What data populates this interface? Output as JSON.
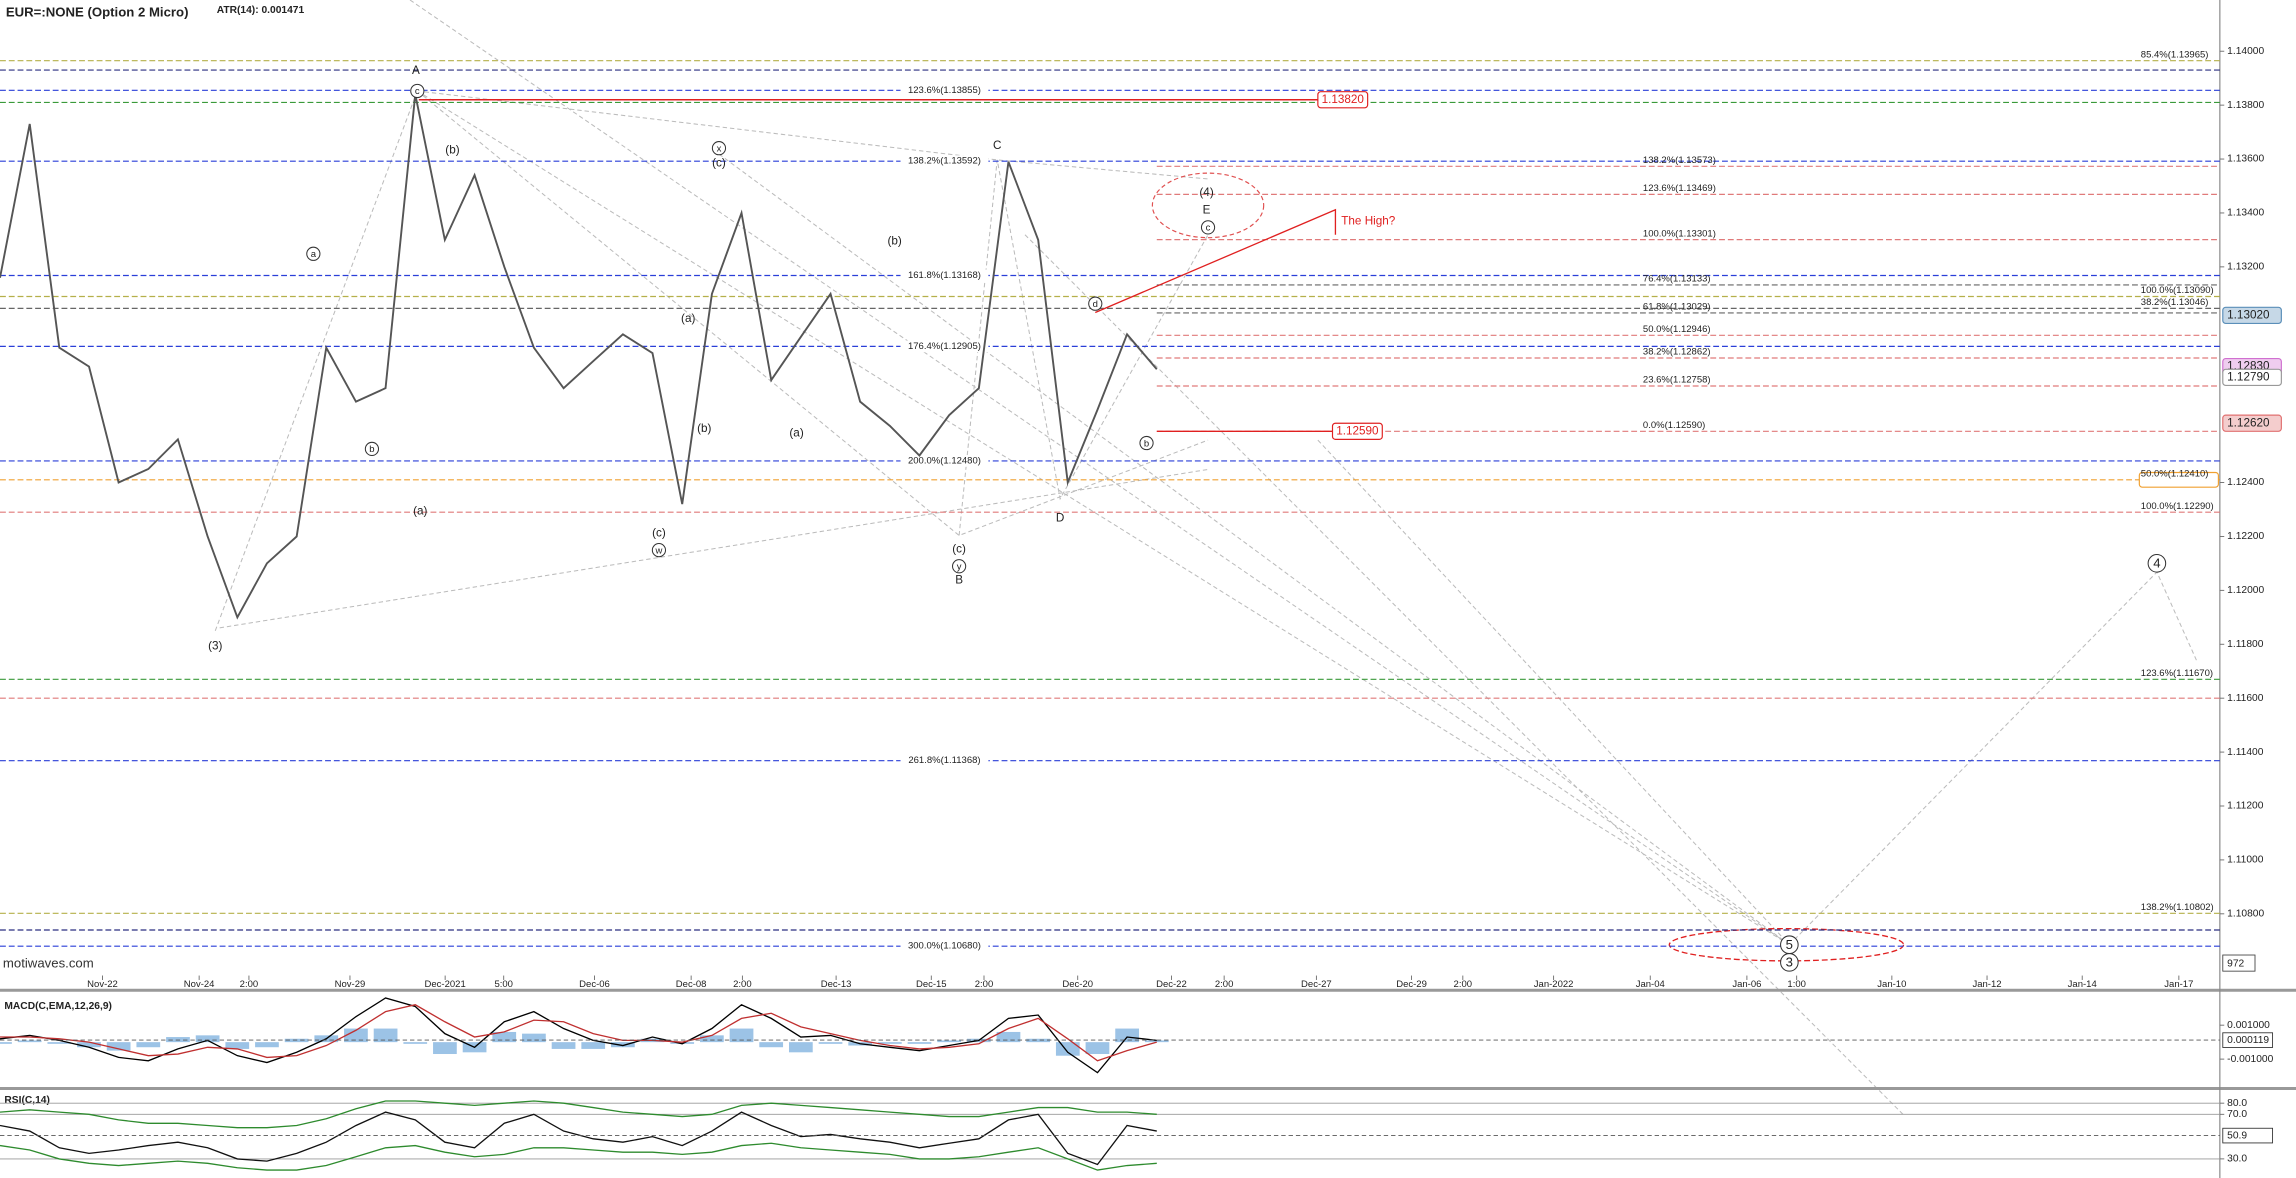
{
  "chart_data": [
    {
      "type": "line",
      "title": "EUR=:NONE (Option 2 Micro)",
      "subtitle": "ATR(14): 0.001471",
      "watermark": "motiwaves.com",
      "volume_label": "972",
      "ylim": [
        1.10571,
        1.1419
      ],
      "yticks": [
        {
          "value": 1.14,
          "label": "1.14000"
        },
        {
          "value": 1.138,
          "label": "1.13800"
        },
        {
          "value": 1.136,
          "label": "1.13600"
        },
        {
          "value": 1.134,
          "label": "1.13400"
        },
        {
          "value": 1.132,
          "label": "1.13200"
        },
        {
          "value": 1.124,
          "label": "1.12400"
        },
        {
          "value": 1.122,
          "label": "1.12200"
        },
        {
          "value": 1.12,
          "label": "1.12000"
        },
        {
          "value": 1.118,
          "label": "1.11800"
        },
        {
          "value": 1.116,
          "label": "1.11600"
        },
        {
          "value": 1.114,
          "label": "1.11400"
        },
        {
          "value": 1.112,
          "label": "1.11200"
        },
        {
          "value": 1.11,
          "label": "1.11000"
        },
        {
          "value": 1.108,
          "label": "1.10800"
        }
      ],
      "xticks": [
        "Nov-22",
        "Nov-24",
        "2:00",
        "Nov-29",
        "Dec-2021",
        "5:00",
        "Dec-06",
        "Dec-08",
        "2:00",
        "Dec-13",
        "Dec-15",
        "2:00",
        "Dec-20",
        "Dec-22",
        "2:00",
        "Dec-27",
        "Dec-29",
        "2:00",
        "Jan-2022",
        "Jan-04",
        "Jan-06",
        "1:00",
        "Jan-10",
        "Jan-12",
        "Jan-14",
        "Jan-17"
      ],
      "color": "#555555",
      "values": [
        1.1316,
        1.1373,
        1.129,
        1.1283,
        1.124,
        1.1245,
        1.1256,
        1.122,
        1.119,
        1.121,
        1.122,
        1.129,
        1.127,
        1.1275,
        1.1384,
        1.133,
        1.1354,
        1.132,
        1.129,
        1.1275,
        1.1285,
        1.1295,
        1.1288,
        1.1232,
        1.131,
        1.134,
        1.1278,
        1.1294,
        1.131,
        1.127,
        1.1261,
        1.125,
        1.1265,
        1.1275,
        1.1359,
        1.133,
        1.124,
        1.1267,
        1.1295,
        1.1282
      ],
      "levels": [
        {
          "label": "85.4%(1.13965)",
          "value": 1.13965,
          "color": "#b5b04a"
        },
        {
          "value": 1.1393,
          "color": "#2a2f80"
        },
        {
          "label": "123.6%(1.13855)",
          "value": 1.13855,
          "color": "#2a3fd8"
        },
        {
          "value": 1.1381,
          "color": "#3a9a3a"
        },
        {
          "label": "138.2%(1.13592)",
          "value": 1.13592,
          "color": "#2a3fd8"
        },
        {
          "label": "138.2%(1.13573)",
          "value": 1.13573,
          "color": "#e07a7a"
        },
        {
          "label": "123.6%(1.13469)",
          "value": 1.13469,
          "color": "#e07a7a"
        },
        {
          "label": "100.0%(1.13301)",
          "value": 1.13301,
          "color": "#e07a7a"
        },
        {
          "label": "161.8%(1.13168)",
          "value": 1.13168,
          "color": "#2a3fd8"
        },
        {
          "label": "76.4%(1.13133)",
          "value": 1.13133,
          "color": "#666666"
        },
        {
          "label": "100.0%(1.13090)",
          "value": 1.1309,
          "color": "#b5b04a"
        },
        {
          "label": "38.2%(1.13046)",
          "value": 1.13046,
          "color": "#666666"
        },
        {
          "label": "61.8%(1.13029)",
          "value": 1.13029,
          "color": "#666666"
        },
        {
          "label": "50.0%(1.12946)",
          "value": 1.12946,
          "color": "#e07a7a"
        },
        {
          "label": "176.4%(1.12905)",
          "value": 1.12905,
          "color": "#2a3fd8"
        },
        {
          "label": "38.2%(1.12862)",
          "value": 1.12862,
          "color": "#e07a7a"
        },
        {
          "label": "23.6%(1.12758)",
          "value": 1.12758,
          "color": "#e07a7a"
        },
        {
          "label": "0.0%(1.12590)",
          "value": 1.1259,
          "color": "#e07a7a"
        },
        {
          "label": "200.0%(1.12480)",
          "value": 1.1248,
          "color": "#2a3fd8"
        },
        {
          "label": "50.0%(1.12410)",
          "value": 1.1241,
          "color": "#f0a030"
        },
        {
          "label": "100.0%(1.12290)",
          "value": 1.1229,
          "color": "#e07a7a"
        },
        {
          "label": "123.6%(1.11670)",
          "value": 1.1167,
          "color": "#3a9a3a"
        },
        {
          "value": 1.116,
          "color": "#e07a7a"
        },
        {
          "label": "261.8%(1.11368)",
          "value": 1.11368,
          "color": "#2a3fd8"
        },
        {
          "label": "138.2%(1.10802)",
          "value": 1.10802,
          "color": "#b5b04a"
        },
        {
          "value": 1.1074,
          "color": "#2a2f80"
        },
        {
          "label": "300.0%(1.10680)",
          "value": 1.1068,
          "color": "#2a3fd8"
        }
      ],
      "price_tags": [
        {
          "label": "1.13020",
          "value": 1.1302,
          "color": "#5b8fb9"
        },
        {
          "label": "1.12830",
          "value": 1.1283,
          "color": "#d070d0"
        },
        {
          "label": "1.12790",
          "value": 1.1279,
          "color": "#999999"
        },
        {
          "label": "1.12620",
          "value": 1.1262,
          "color": "#e07070"
        }
      ],
      "red_tags": [
        {
          "label": "1.13820",
          "value": 1.1382
        },
        {
          "label": "1.12590",
          "value": 1.1259
        }
      ],
      "callout": "The High?",
      "annotations": [
        {
          "text": "A"
        },
        {
          "text": "c",
          "circled": true
        },
        {
          "text": "(b)"
        },
        {
          "text": "x",
          "circled": true
        },
        {
          "text": "(c)"
        },
        {
          "text": "C"
        },
        {
          "text": "(4)"
        },
        {
          "text": "E"
        },
        {
          "text": "c",
          "circled": true
        },
        {
          "text": "a",
          "circled": true
        },
        {
          "text": "(b)"
        },
        {
          "text": "d",
          "circled": true
        },
        {
          "text": "(a)"
        },
        {
          "text": "b",
          "circled": true
        },
        {
          "text": "(b)"
        },
        {
          "text": "(a)"
        },
        {
          "text": "b",
          "circled": true
        },
        {
          "text": "(a)"
        },
        {
          "text": "(c)"
        },
        {
          "text": "w",
          "circled": true
        },
        {
          "text": "D"
        },
        {
          "text": "(c)"
        },
        {
          "text": "y",
          "circled": true
        },
        {
          "text": "B"
        },
        {
          "text": "(3)"
        },
        {
          "text": "4",
          "circled": true
        },
        {
          "text": "5",
          "circled": true
        },
        {
          "text": "3",
          "circled": true
        }
      ]
    },
    {
      "type": "line",
      "title": "MACD(C,EMA,12,26,9)",
      "ylim": [
        -0.00256,
        0.0028
      ],
      "yticks": [
        {
          "value": 0.001,
          "label": "0.001000"
        },
        {
          "value": -0.001,
          "label": "-0.001000"
        }
      ],
      "current": {
        "value": 0.000119,
        "label": "0.000119"
      },
      "series": [
        {
          "color": "#9cc3e6",
          "style": "histogram",
          "values": [
            -0.0001,
            0.0001,
            -0.0001,
            -0.0003,
            -0.0005,
            -0.0003,
            0.0003,
            0.0004,
            -0.0004,
            -0.0003,
            0.0002,
            0.0004,
            0.0008,
            0.0008,
            -0.0001,
            -0.0007,
            -0.0006,
            0.0006,
            0.0005,
            -0.0004,
            -0.0004,
            -0.0003,
            0.0002,
            -0.0001,
            0.0004,
            0.0008,
            -0.0003,
            -0.0006,
            -0.0001,
            -0.0002,
            -0.0001,
            -0.0001,
            0.0001,
            0.0002,
            0.0006,
            0.0002,
            -0.0008,
            -0.0007,
            0.0008,
            0.0001
          ]
        },
        {
          "color": "#000000",
          "values": [
            0.0002,
            0.0004,
            0.0001,
            -0.0003,
            -0.0009,
            -0.0011,
            -0.0004,
            0.0001,
            -0.0008,
            -0.0012,
            -0.0006,
            0.0002,
            0.0015,
            0.0026,
            0.0021,
            0.0005,
            -0.0003,
            0.0012,
            0.0018,
            0.0008,
            0.0001,
            -0.0002,
            0.0003,
            -0.0001,
            0.0008,
            0.0022,
            0.0014,
            0.0003,
            0.0004,
            -0.0001,
            -0.0003,
            -0.0005,
            -0.0002,
            0.0001,
            0.0014,
            0.0016,
            -0.0006,
            -0.0018,
            0.0003,
            0.0001
          ]
        },
        {
          "color": "#c03030",
          "values": [
            0.0003,
            0.0003,
            0.0002,
            0,
            -0.0004,
            -0.0008,
            -0.0007,
            -0.0003,
            -0.0004,
            -0.0009,
            -0.0008,
            -0.0002,
            0.0007,
            0.0018,
            0.0022,
            0.0012,
            0.0003,
            0.0006,
            0.0013,
            0.0012,
            0.0005,
            0.0001,
            0.0001,
            0,
            0.0004,
            0.0014,
            0.0017,
            0.0009,
            0.0005,
            0.0001,
            -0.0002,
            -0.0004,
            -0.0003,
            -0.0001,
            0.0008,
            0.0014,
            0.0002,
            -0.0011,
            -0.0005,
            0
          ]
        }
      ]
    },
    {
      "type": "line",
      "title": "RSI(C,14)",
      "ylim": [
        16.8,
        89.2
      ],
      "grid": true,
      "yticks": [
        {
          "value": 80,
          "label": "80.0"
        },
        {
          "value": 70,
          "label": "70.0"
        },
        {
          "value": 30,
          "label": "30.0"
        }
      ],
      "current": {
        "value": 50.9,
        "label": "50.9"
      },
      "series": [
        {
          "color": "#2e8b2e",
          "values": [
            72,
            74,
            72,
            70,
            65,
            62,
            62,
            60,
            58,
            58,
            60,
            66,
            75,
            82,
            82,
            80,
            78,
            80,
            82,
            80,
            76,
            72,
            70,
            68,
            70,
            78,
            80,
            78,
            76,
            74,
            72,
            70,
            68,
            68,
            72,
            76,
            76,
            72,
            72,
            70
          ]
        },
        {
          "color": "#2e8b2e",
          "values": [
            42,
            38,
            30,
            26,
            24,
            26,
            28,
            26,
            22,
            20,
            20,
            24,
            32,
            40,
            42,
            36,
            32,
            34,
            40,
            40,
            38,
            36,
            36,
            34,
            36,
            42,
            44,
            40,
            38,
            36,
            34,
            30,
            30,
            32,
            36,
            40,
            30,
            20,
            24,
            26
          ]
        },
        {
          "color": "#111111",
          "values": [
            60,
            55,
            40,
            35,
            38,
            42,
            45,
            40,
            30,
            28,
            35,
            45,
            60,
            72,
            65,
            45,
            40,
            62,
            70,
            55,
            48,
            45,
            50,
            42,
            55,
            72,
            60,
            50,
            52,
            48,
            45,
            40,
            44,
            48,
            65,
            70,
            35,
            25,
            60,
            55
          ]
        }
      ]
    }
  ]
}
